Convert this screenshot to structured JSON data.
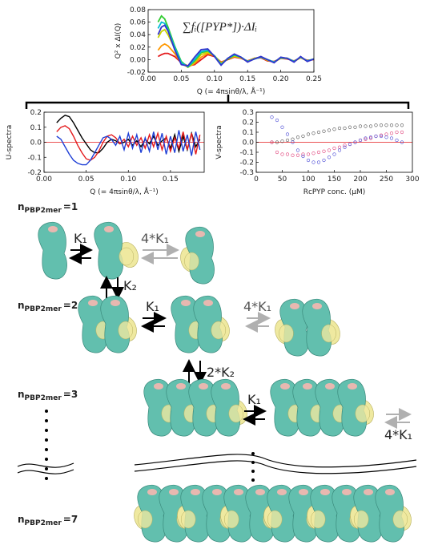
{
  "chart_data": [
    {
      "type": "line",
      "ylabel": "Q² x ΔI(Q)",
      "xlabel": "Q (= 4πsinθ/λ, Å⁻¹)",
      "annotation": "∑fᵢ([PYP*])·ΔIᵢ",
      "x": [
        0.015,
        0.02,
        0.025,
        0.03,
        0.04,
        0.05,
        0.06,
        0.07,
        0.08,
        0.09,
        0.1,
        0.11,
        0.12,
        0.13,
        0.14,
        0.15,
        0.16,
        0.17,
        0.18,
        0.19,
        0.2,
        0.21,
        0.22,
        0.23,
        0.24,
        0.25
      ],
      "series": [
        {
          "color": "#e41a1c",
          "values": [
            0.005,
            0.008,
            0.01,
            0.01,
            0.005,
            -0.005,
            -0.01,
            -0.008,
            0.0,
            0.008,
            0.005,
            -0.004,
            0.0,
            0.004,
            0.002,
            -0.002,
            0.002,
            0.003,
            -0.002,
            -0.003,
            0.002,
            0.001,
            -0.002,
            0.003,
            -0.001,
            0.0
          ]
        },
        {
          "color": "#ff9900",
          "values": [
            0.015,
            0.022,
            0.025,
            0.022,
            0.01,
            -0.006,
            -0.012,
            -0.006,
            0.004,
            0.01,
            0.006,
            -0.005,
            0.001,
            0.005,
            0.003,
            -0.003,
            0.002,
            0.004,
            -0.001,
            -0.004,
            0.002,
            0.002,
            -0.003,
            0.003,
            -0.002,
            0.001
          ]
        },
        {
          "color": "#c8d400",
          "values": [
            0.035,
            0.045,
            0.048,
            0.04,
            0.018,
            -0.004,
            -0.012,
            -0.004,
            0.008,
            0.012,
            0.006,
            -0.006,
            0.001,
            0.006,
            0.003,
            -0.003,
            0.002,
            0.004,
            -0.001,
            -0.004,
            0.003,
            0.002,
            -0.003,
            0.004,
            -0.002,
            0.001
          ]
        },
        {
          "color": "#33cc33",
          "values": [
            0.06,
            0.07,
            0.065,
            0.052,
            0.022,
            -0.003,
            -0.012,
            -0.002,
            0.011,
            0.014,
            0.006,
            -0.007,
            0.001,
            0.007,
            0.004,
            -0.003,
            0.001,
            0.004,
            0.0,
            -0.004,
            0.003,
            0.002,
            -0.003,
            0.004,
            -0.002,
            0.001
          ]
        },
        {
          "color": "#00bcd4",
          "values": [
            0.05,
            0.06,
            0.058,
            0.048,
            0.02,
            -0.005,
            -0.011,
            0.0,
            0.013,
            0.015,
            0.006,
            -0.008,
            0.002,
            0.008,
            0.004,
            -0.003,
            0.001,
            0.004,
            0.0,
            -0.004,
            0.003,
            0.002,
            -0.003,
            0.004,
            -0.002,
            0.001
          ]
        },
        {
          "color": "#3333cc",
          "values": [
            0.04,
            0.052,
            0.055,
            0.046,
            0.016,
            -0.008,
            -0.01,
            0.004,
            0.016,
            0.017,
            0.005,
            -0.009,
            0.002,
            0.009,
            0.004,
            -0.004,
            0.001,
            0.005,
            0.0,
            -0.005,
            0.004,
            0.002,
            -0.004,
            0.005,
            -0.003,
            0.001
          ]
        }
      ],
      "xlim": [
        0,
        0.25
      ],
      "xticks": [
        {
          "value": 0,
          "label": "0.00"
        },
        0.05,
        {
          "value": 0.1,
          "label": "0.10"
        },
        0.15,
        {
          "value": 0.2,
          "label": "0.20"
        },
        0.25
      ],
      "ylim": [
        -0.02,
        0.08
      ],
      "yticks": [
        -0.02,
        {
          "value": 0,
          "label": "0.00"
        },
        0.02,
        0.04,
        0.06,
        0.08
      ]
    },
    {
      "type": "line",
      "ylabel": "U-spectra",
      "xlabel": "Q (= 4πsinθ/λ, Å⁻¹)",
      "zero_line_color": "#e41a1c",
      "x": [
        0.015,
        0.02,
        0.025,
        0.03,
        0.035,
        0.04,
        0.045,
        0.05,
        0.055,
        0.06,
        0.065,
        0.07,
        0.075,
        0.08,
        0.085,
        0.09,
        0.095,
        0.1,
        0.105,
        0.11,
        0.115,
        0.12,
        0.125,
        0.13,
        0.135,
        0.14,
        0.145,
        0.15,
        0.155,
        0.16,
        0.165,
        0.17,
        0.175,
        0.18,
        0.185
      ],
      "series": [
        {
          "color": "#000000",
          "values": [
            0.13,
            0.16,
            0.18,
            0.17,
            0.13,
            0.08,
            0.03,
            -0.01,
            -0.05,
            -0.07,
            -0.07,
            -0.04,
            0.0,
            0.02,
            0.01,
            -0.01,
            0.0,
            0.02,
            -0.02,
            0.01,
            -0.03,
            0.02,
            -0.01,
            0.04,
            -0.02,
            0.01,
            0.03,
            -0.04,
            0.05,
            -0.06,
            0.04,
            -0.05,
            0.06,
            -0.03,
            0.02
          ]
        },
        {
          "color": "#e41a1c",
          "values": [
            0.07,
            0.1,
            0.11,
            0.09,
            0.04,
            -0.02,
            -0.07,
            -0.11,
            -0.12,
            -0.1,
            -0.06,
            0.0,
            0.04,
            0.05,
            0.03,
            -0.01,
            0.02,
            -0.03,
            0.04,
            -0.02,
            0.03,
            -0.04,
            0.05,
            -0.03,
            0.06,
            -0.05,
            0.04,
            -0.06,
            0.03,
            -0.04,
            0.07,
            -0.05,
            0.06,
            -0.08,
            0.05
          ]
        },
        {
          "color": "#1f3fd6",
          "values": [
            0.04,
            0.02,
            -0.03,
            -0.08,
            -0.12,
            -0.14,
            -0.15,
            -0.15,
            -0.12,
            -0.07,
            -0.02,
            0.03,
            0.04,
            0.02,
            -0.02,
            0.04,
            -0.05,
            0.06,
            -0.04,
            0.05,
            -0.07,
            0.03,
            -0.06,
            0.07,
            -0.05,
            0.06,
            -0.08,
            0.04,
            -0.07,
            0.08,
            -0.06,
            0.05,
            -0.09,
            0.07,
            -0.05
          ]
        }
      ],
      "xlim": [
        0,
        0.19
      ],
      "xticks": [
        {
          "value": 0,
          "label": "0.00"
        },
        0.05,
        {
          "value": 0.1,
          "label": "0.10"
        },
        0.15
      ],
      "ylim": [
        -0.2,
        0.2
      ],
      "yticks": [
        -0.2,
        -0.1,
        {
          "value": 0,
          "label": "0.0"
        },
        0.1,
        0.2
      ]
    },
    {
      "type": "scatter",
      "ylabel": "V-spectra",
      "xlabel": "RcPYP conc. (μM)",
      "zero_line_color": "#e41a1c",
      "x": [
        30,
        40,
        50,
        60,
        70,
        80,
        90,
        100,
        110,
        120,
        130,
        140,
        150,
        160,
        170,
        180,
        190,
        200,
        210,
        220,
        230,
        240,
        250,
        260,
        270,
        280
      ],
      "series": [
        {
          "color": "#555555",
          "values": [
            0.0,
            0.0,
            0.01,
            0.02,
            0.03,
            0.05,
            0.06,
            0.08,
            0.09,
            0.1,
            0.11,
            0.12,
            0.13,
            0.14,
            0.14,
            0.15,
            0.15,
            0.16,
            0.16,
            0.16,
            0.17,
            0.17,
            0.17,
            0.17,
            0.17,
            0.17
          ]
        },
        {
          "color": "#e0407a",
          "values": [
            0.0,
            -0.1,
            -0.12,
            -0.12,
            -0.13,
            -0.13,
            -0.12,
            -0.12,
            -0.11,
            -0.1,
            -0.09,
            -0.08,
            -0.06,
            -0.05,
            -0.03,
            -0.02,
            0.0,
            0.02,
            0.03,
            0.04,
            0.06,
            0.07,
            0.08,
            0.09,
            0.1,
            0.1
          ]
        },
        {
          "color": "#4a4ad6",
          "values": [
            0.25,
            0.22,
            0.15,
            0.08,
            0.0,
            -0.08,
            -0.14,
            -0.18,
            -0.2,
            -0.2,
            -0.18,
            -0.15,
            -0.12,
            -0.08,
            -0.05,
            -0.02,
            0.0,
            0.02,
            0.04,
            0.05,
            0.06,
            0.06,
            0.05,
            0.04,
            0.02,
            0.0
          ]
        }
      ],
      "xlim": [
        0,
        300
      ],
      "xticks": [
        0,
        50,
        100,
        150,
        200,
        250,
        300
      ],
      "ylim": [
        -0.3,
        0.3
      ],
      "yticks": [
        -0.3,
        -0.2,
        -0.1,
        {
          "value": 0,
          "label": "0.0"
        },
        0.1,
        0.2,
        0.3
      ]
    }
  ],
  "diagram": {
    "rows": [
      {
        "n": "n",
        "sub": "PBP2mer",
        "eq": "=1"
      },
      {
        "n": "n",
        "sub": "PBP2mer",
        "eq": "=2"
      },
      {
        "n": "n",
        "sub": "PBP2mer",
        "eq": "=3"
      },
      {
        "n": "n",
        "sub": "PBP2mer",
        "eq": "=7"
      }
    ],
    "rates": [
      "K₁",
      "4*K₁",
      "K₂",
      "K₁",
      "4*K₁",
      "2*K₂",
      "K₁",
      "4*K₁"
    ]
  }
}
